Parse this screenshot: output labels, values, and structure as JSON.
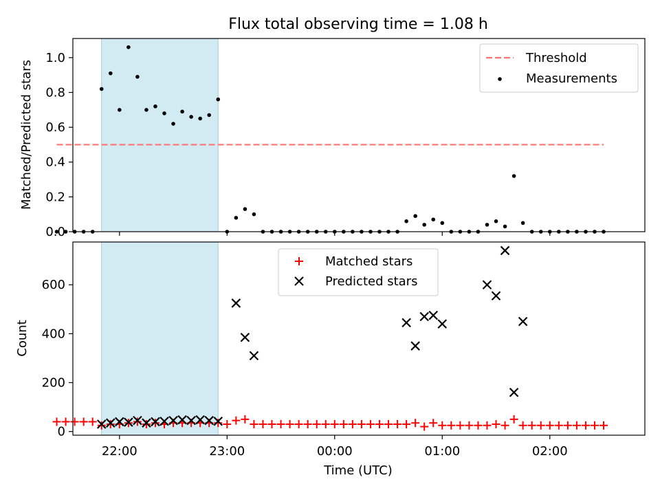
{
  "chart_data": [
    {
      "type": "scatter",
      "title": "Flux total observing time = 1.08 h",
      "xlabel": "",
      "ylabel": "Matched/Predicted stars",
      "ylim": [
        0,
        1.11
      ],
      "xlim": [
        "21:34",
        "02:53"
      ],
      "yticks": [
        0.0,
        0.2,
        0.4,
        0.6,
        0.8,
        1.0
      ],
      "ytick_labels": [
        "0.0",
        "0.2",
        "0.4",
        "0.6",
        "0.8",
        "1.0"
      ],
      "x_time_minutes": [
        -35,
        -30,
        -25,
        -20,
        -15,
        -10,
        -5,
        0,
        5,
        10,
        15,
        20,
        25,
        30,
        35,
        40,
        45,
        50,
        55,
        60,
        65,
        70,
        75,
        80,
        85,
        90,
        95,
        100,
        105,
        110,
        115,
        120,
        125,
        130,
        135,
        140,
        145,
        150,
        155,
        160,
        165,
        170,
        175,
        180,
        185,
        190,
        195,
        200,
        205,
        210,
        215,
        220,
        225,
        230,
        235,
        240,
        245,
        250,
        255,
        260,
        265,
        270
      ],
      "series": [
        {
          "name": "Measurements",
          "values": [
            0,
            0,
            0,
            0,
            0,
            0.82,
            0.91,
            0.7,
            1.06,
            0.89,
            0.7,
            0.72,
            0.68,
            0.62,
            0.69,
            0.66,
            0.65,
            0.67,
            0.76,
            0,
            0.08,
            0.13,
            0.1,
            0,
            0,
            0,
            0,
            0,
            0,
            0,
            0,
            0,
            0,
            0,
            0,
            0,
            0,
            0,
            0,
            0.06,
            0.09,
            0.04,
            0.07,
            0.05,
            0,
            0,
            0,
            0,
            0.04,
            0.06,
            0.03,
            0.32,
            0.05,
            0,
            0,
            0,
            0,
            0,
            0,
            0,
            0,
            0
          ]
        },
        {
          "name": "Threshold",
          "style": "dashed",
          "x_time_minutes": [
            -35,
            270
          ],
          "values": [
            0.5,
            0.5
          ]
        }
      ],
      "highlight_span_minutes": [
        -10,
        55
      ],
      "legend": {
        "position": "top-right",
        "entries": [
          "Threshold",
          "Measurements"
        ]
      }
    },
    {
      "type": "scatter",
      "title": "",
      "xlabel": "Time (UTC)",
      "ylabel": "Count",
      "ylim": [
        -15,
        775
      ],
      "xlim": [
        "21:34",
        "02:53"
      ],
      "yticks": [
        0,
        200,
        400,
        600
      ],
      "ytick_labels": [
        "0",
        "200",
        "400",
        "600"
      ],
      "xticks_minutes": [
        0,
        60,
        120,
        180,
        240,
        300
      ],
      "xtick_labels": [
        "22:00",
        "23:00",
        "00:00",
        "01:00",
        "02:00"
      ],
      "series": [
        {
          "name": "Matched stars",
          "marker": "plus",
          "x_time_minutes": [
            -35,
            -30,
            -25,
            -20,
            -15,
            -10,
            -5,
            0,
            5,
            10,
            15,
            20,
            25,
            30,
            35,
            40,
            45,
            50,
            55,
            60,
            65,
            70,
            75,
            80,
            85,
            90,
            95,
            100,
            105,
            110,
            115,
            120,
            125,
            130,
            135,
            140,
            145,
            150,
            155,
            160,
            165,
            170,
            175,
            180,
            185,
            190,
            195,
            200,
            205,
            210,
            215,
            220,
            225,
            230,
            235,
            240,
            245,
            250,
            255,
            260,
            265,
            270
          ],
          "values": [
            40,
            40,
            40,
            40,
            40,
            25,
            30,
            30,
            35,
            40,
            30,
            35,
            30,
            35,
            35,
            35,
            35,
            35,
            35,
            30,
            45,
            50,
            30,
            30,
            30,
            30,
            30,
            30,
            30,
            30,
            30,
            30,
            30,
            30,
            30,
            30,
            30,
            30,
            30,
            30,
            35,
            20,
            35,
            25,
            25,
            25,
            25,
            25,
            25,
            30,
            25,
            50,
            25,
            25,
            25,
            25,
            25,
            25,
            25,
            25,
            25,
            25
          ]
        },
        {
          "name": "Predicted stars",
          "marker": "x",
          "x_time_minutes": [
            -10,
            -5,
            0,
            5,
            10,
            15,
            20,
            25,
            30,
            35,
            40,
            45,
            50,
            55,
            65,
            70,
            75,
            160,
            165,
            170,
            175,
            180,
            205,
            210,
            215,
            220,
            225
          ],
          "values": [
            30,
            35,
            40,
            38,
            45,
            35,
            40,
            42,
            45,
            48,
            45,
            48,
            45,
            42,
            525,
            385,
            310,
            445,
            350,
            470,
            475,
            440,
            600,
            555,
            740,
            160,
            450
          ]
        }
      ],
      "highlight_span_minutes": [
        -10,
        55
      ],
      "legend": {
        "position": "top-center",
        "entries": [
          "Matched stars",
          "Predicted stars"
        ]
      }
    }
  ]
}
